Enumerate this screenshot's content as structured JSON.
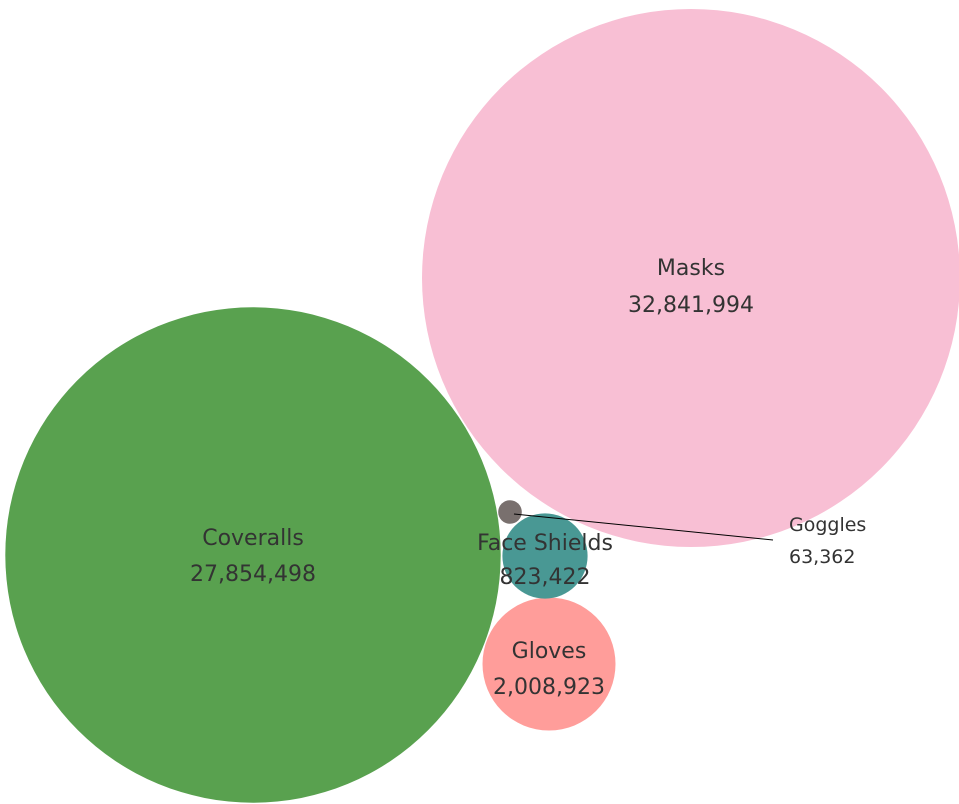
{
  "chart_data": {
    "type": "bubble",
    "title": "",
    "series": [
      {
        "name": "Masks",
        "value": 32841994,
        "value_label": "32,841,994",
        "color": "#F8BFD4"
      },
      {
        "name": "Coveralls",
        "value": 27854498,
        "value_label": "27,854,498",
        "color": "#59A14F"
      },
      {
        "name": "Gloves",
        "value": 2008923,
        "value_label": "2,008,923",
        "color": "#FF9D9A"
      },
      {
        "name": "Face Shields",
        "value": 823422,
        "value_label": "823,422",
        "color": "#499894"
      },
      {
        "name": "Goggles",
        "value": 63362,
        "value_label": "63,362",
        "color": "#79706E"
      }
    ],
    "leader_line_color": "#000000",
    "label_text_color": "#333333"
  }
}
